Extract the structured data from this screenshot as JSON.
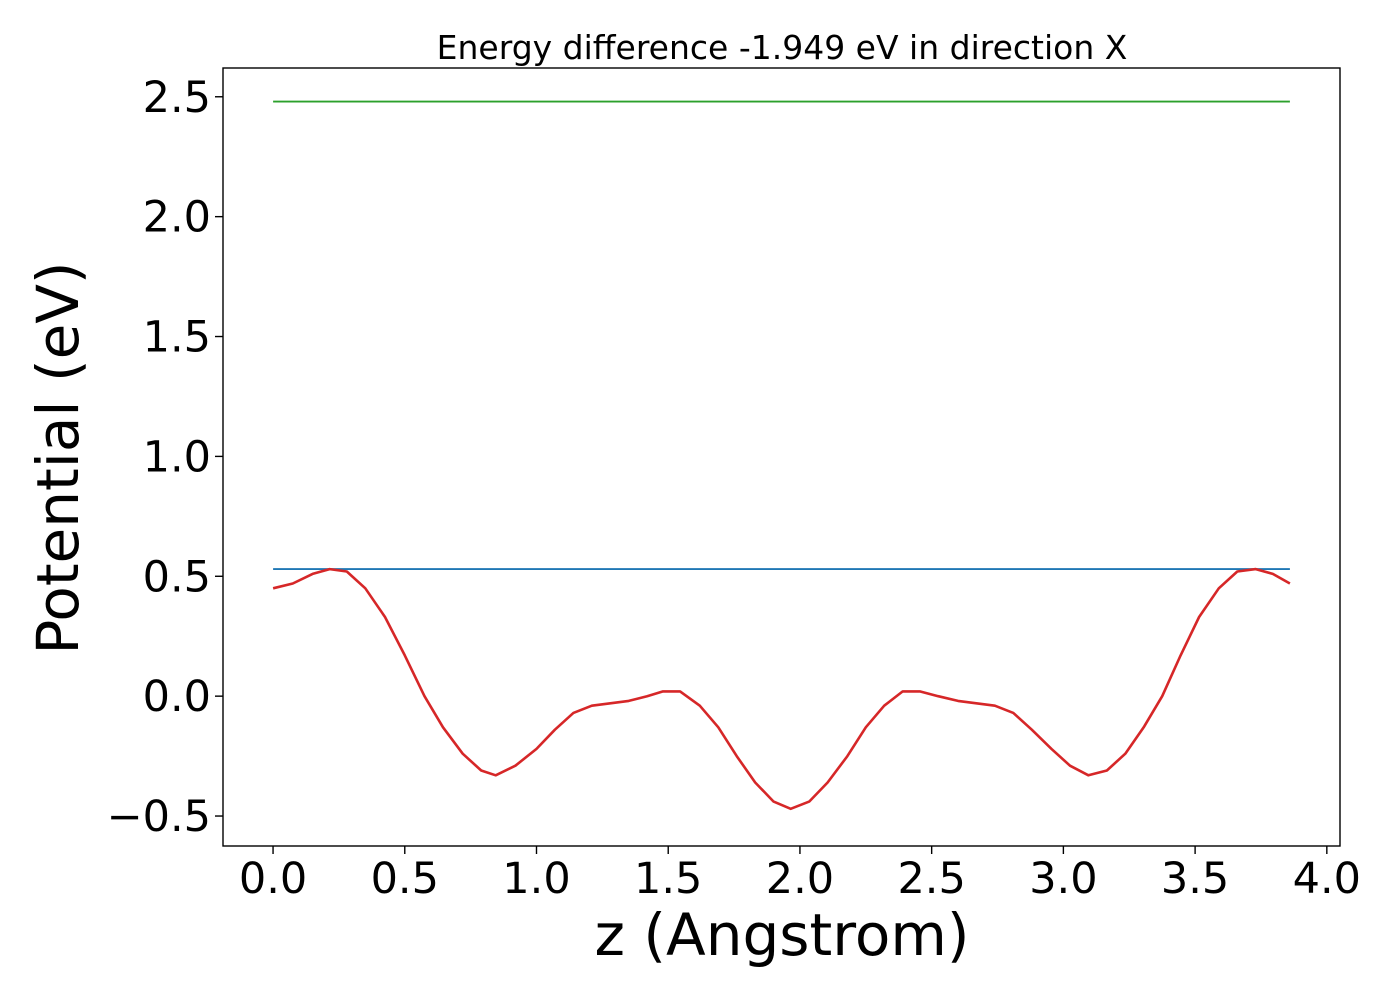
{
  "chart_data": {
    "type": "line",
    "title": "Energy difference -1.949 eV in direction X",
    "xlabel": "z (Angstrom)",
    "ylabel": "Potential (eV)",
    "xlim": [
      -0.19,
      4.05
    ],
    "ylim": [
      -0.625,
      2.62
    ],
    "x_ticks": [
      0.0,
      0.5,
      1.0,
      1.5,
      2.0,
      2.5,
      3.0,
      3.5,
      4.0
    ],
    "x_tick_labels": [
      "0.0",
      "0.5",
      "1.0",
      "1.5",
      "2.0",
      "2.5",
      "3.0",
      "3.5",
      "4.0"
    ],
    "y_ticks": [
      -0.5,
      0.0,
      0.5,
      1.0,
      1.5,
      2.0,
      2.5
    ],
    "y_tick_labels": [
      "−0.5",
      "0.0",
      "0.5",
      "1.0",
      "1.5",
      "2.0",
      "2.5"
    ],
    "grid": false,
    "series": [
      {
        "color": "#2ca02c",
        "x": [
          0.0,
          3.86
        ],
        "y": [
          2.48,
          2.48
        ]
      },
      {
        "color": "#1f77b4",
        "x": [
          0.0,
          3.86
        ],
        "y": [
          0.53,
          0.53
        ]
      },
      {
        "color": "#d62728",
        "x": [
          0.0,
          0.075,
          0.15,
          0.215,
          0.28,
          0.35,
          0.425,
          0.5,
          0.575,
          0.645,
          0.72,
          0.79,
          0.845,
          0.92,
          1.0,
          1.07,
          1.14,
          1.21,
          1.28,
          1.35,
          1.42,
          1.48,
          1.545,
          1.62,
          1.69,
          1.76,
          1.83,
          1.9,
          1.965,
          2.035,
          2.105,
          2.18,
          2.25,
          2.32,
          2.39,
          2.455,
          2.525,
          2.6,
          2.67,
          2.74,
          2.81,
          2.88,
          2.955,
          3.025,
          3.095,
          3.165,
          3.235,
          3.305,
          3.375,
          3.445,
          3.515,
          3.59,
          3.66,
          3.73,
          3.795,
          3.86
        ],
        "y": [
          0.45,
          0.47,
          0.51,
          0.53,
          0.52,
          0.45,
          0.33,
          0.17,
          0.0,
          -0.13,
          -0.24,
          -0.31,
          -0.33,
          -0.29,
          -0.22,
          -0.14,
          -0.07,
          -0.04,
          -0.03,
          -0.02,
          0.0,
          0.02,
          0.02,
          -0.04,
          -0.13,
          -0.25,
          -0.36,
          -0.44,
          -0.47,
          -0.44,
          -0.36,
          -0.25,
          -0.13,
          -0.04,
          0.02,
          0.02,
          0.0,
          -0.02,
          -0.03,
          -0.04,
          -0.07,
          -0.14,
          -0.22,
          -0.29,
          -0.33,
          -0.31,
          -0.24,
          -0.13,
          0.0,
          0.17,
          0.33,
          0.45,
          0.52,
          0.53,
          0.51,
          0.47
        ]
      }
    ]
  }
}
